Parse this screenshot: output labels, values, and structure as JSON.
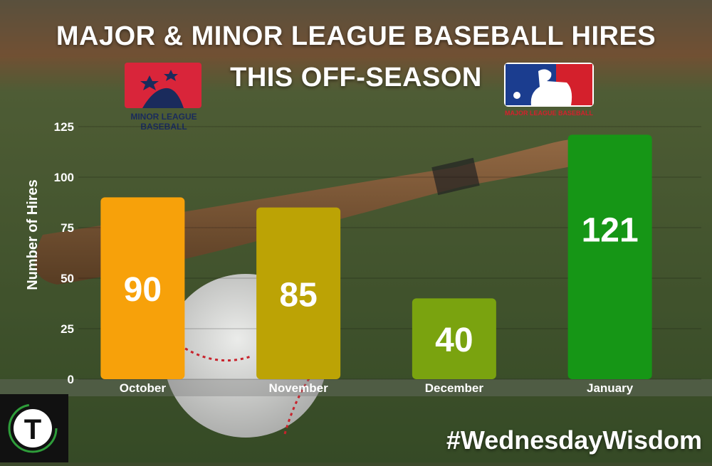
{
  "header": {
    "title_line1": "MAJOR & MINOR LEAGUE BASEBALL HIRES",
    "title_line2": "THIS OFF-SEASON"
  },
  "logos": {
    "minor_league": {
      "line1": "MINOR LEAGUE",
      "line2": "BASEBALL"
    },
    "major_league": {
      "text": "MAJOR LEAGUE BASEBALL"
    },
    "badge_letter": "T"
  },
  "footer": {
    "hashtag": "#WednesdayWisdom"
  },
  "colors": {
    "october": "#f7a10a",
    "november": "#bca305",
    "december": "#7aa30f",
    "january": "#169616",
    "text": "#ffffff",
    "mlb_blue": "#1b3d8f",
    "mlb_red": "#d4202c",
    "milb_red": "#d9253a",
    "milb_navy": "#1a2b5c"
  },
  "chart_data": {
    "type": "bar",
    "title": "MAJOR & MINOR LEAGUE BASEBALL HIRES THIS OFF-SEASON",
    "xlabel": "",
    "ylabel": "Number of Hires",
    "categories": [
      "October",
      "November",
      "December",
      "January"
    ],
    "values": [
      90,
      85,
      40,
      121
    ],
    "data_labels": [
      "90",
      "85",
      "40",
      "121"
    ],
    "yticks": [
      0,
      25,
      50,
      75,
      100,
      125
    ],
    "ylim": [
      0,
      125
    ],
    "grid": true,
    "legend": "none"
  }
}
